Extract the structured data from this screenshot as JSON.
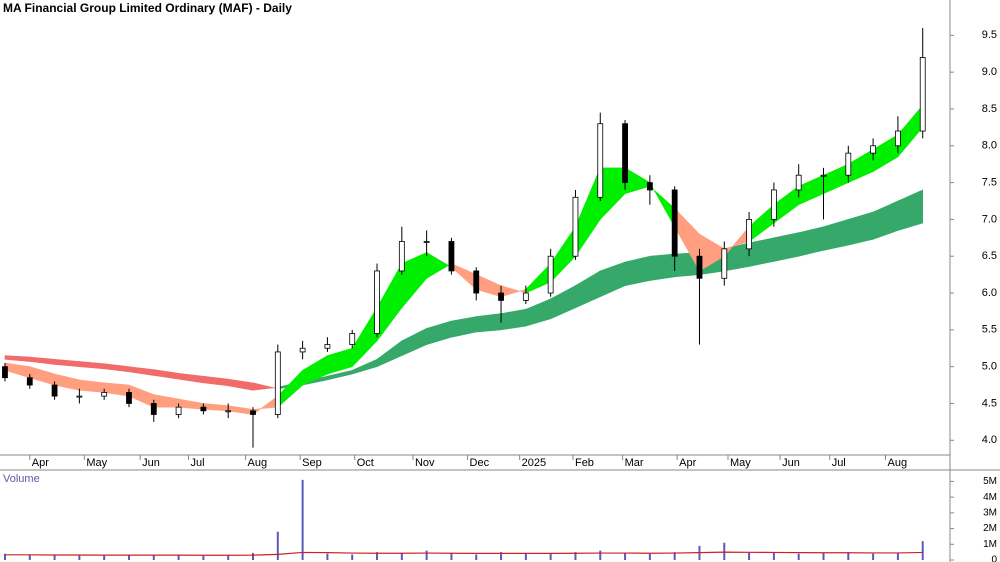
{
  "chart_data": [
    {
      "type": "candlestick",
      "title": "MA Financial Group Limited Ordinary (MAF) - Daily",
      "x": [
        0,
        2,
        4,
        6,
        8,
        10,
        12,
        14,
        16,
        18,
        20,
        22,
        24,
        26,
        28,
        30,
        32,
        34,
        36,
        38,
        40,
        42,
        44,
        46,
        48,
        50,
        52,
        54,
        56,
        58,
        60,
        62,
        64,
        66,
        68,
        70,
        72,
        74
      ],
      "open": [
        5.0,
        4.85,
        4.75,
        4.6,
        4.6,
        4.65,
        4.5,
        4.35,
        4.45,
        4.4,
        4.4,
        4.35,
        5.2,
        5.25,
        5.3,
        5.45,
        6.3,
        6.7,
        6.7,
        6.3,
        6.0,
        5.9,
        6.0,
        6.5,
        7.3,
        8.3,
        7.5,
        7.4,
        6.5,
        6.2,
        6.6,
        7.0,
        7.4,
        7.6,
        7.6,
        7.9,
        8.0,
        8.2
      ],
      "high": [
        5.05,
        4.9,
        4.8,
        4.7,
        4.7,
        4.7,
        4.55,
        4.5,
        4.5,
        4.5,
        4.45,
        5.3,
        5.35,
        5.4,
        5.5,
        6.4,
        6.9,
        6.85,
        6.75,
        6.35,
        6.1,
        6.1,
        6.6,
        7.4,
        8.45,
        8.35,
        7.6,
        7.45,
        6.6,
        6.7,
        7.1,
        7.5,
        7.75,
        7.7,
        8.0,
        8.1,
        8.4,
        9.6
      ],
      "low": [
        4.8,
        4.7,
        4.55,
        4.5,
        4.55,
        4.45,
        4.25,
        4.3,
        4.35,
        4.3,
        3.9,
        4.3,
        5.1,
        5.2,
        5.25,
        5.4,
        6.25,
        6.5,
        6.25,
        5.9,
        5.6,
        5.85,
        5.95,
        6.45,
        7.25,
        7.4,
        7.2,
        6.3,
        5.3,
        6.1,
        6.5,
        6.9,
        7.3,
        7.0,
        7.5,
        7.8,
        7.9,
        8.1
      ],
      "close": [
        4.85,
        4.75,
        4.6,
        4.6,
        4.65,
        4.5,
        4.35,
        4.45,
        4.4,
        4.4,
        4.35,
        5.2,
        5.25,
        5.3,
        5.45,
        6.3,
        6.7,
        6.7,
        6.3,
        6.0,
        5.9,
        6.0,
        6.5,
        7.3,
        8.3,
        7.5,
        7.4,
        6.5,
        6.2,
        6.6,
        7.0,
        7.4,
        7.6,
        7.6,
        7.9,
        8.0,
        8.2,
        9.2
      ],
      "up_color": "#ffffff",
      "down_color": "#000000",
      "bands": [
        {
          "fast": [
            5.1,
            5.07,
            5.03,
            5.0,
            4.97,
            4.93,
            4.88,
            4.83,
            4.78,
            4.74,
            4.68,
            4.72,
            4.8,
            4.87,
            4.95,
            5.1,
            5.35,
            5.52,
            5.62,
            5.68,
            5.72,
            5.78,
            5.92,
            6.1,
            6.3,
            6.42,
            6.5,
            6.53,
            6.55,
            6.6,
            6.68,
            6.75,
            6.82,
            6.9,
            7.0,
            7.1,
            7.25,
            7.4
          ],
          "slow": [
            5.15,
            5.13,
            5.1,
            5.07,
            5.04,
            5.0,
            4.96,
            4.91,
            4.87,
            4.83,
            4.78,
            4.7,
            4.75,
            4.82,
            4.9,
            5.0,
            5.15,
            5.3,
            5.4,
            5.47,
            5.5,
            5.55,
            5.65,
            5.8,
            5.95,
            6.1,
            6.17,
            6.22,
            6.25,
            6.3,
            6.36,
            6.43,
            6.5,
            6.58,
            6.65,
            6.73,
            6.85,
            6.95
          ],
          "up_color": "#35a86a",
          "down_color": "#f26b6b"
        },
        {
          "fast": [
            4.95,
            4.85,
            4.75,
            4.68,
            4.65,
            4.6,
            4.45,
            4.45,
            4.42,
            4.4,
            4.35,
            4.6,
            4.95,
            5.15,
            5.25,
            5.8,
            6.4,
            6.55,
            6.35,
            6.05,
            5.95,
            6.05,
            6.4,
            6.9,
            7.7,
            7.7,
            7.5,
            6.9,
            6.3,
            6.5,
            6.9,
            7.2,
            7.45,
            7.6,
            7.75,
            7.95,
            8.15,
            8.55
          ],
          "slow": [
            5.05,
            5.0,
            4.9,
            4.82,
            4.78,
            4.75,
            4.62,
            4.56,
            4.5,
            4.47,
            4.42,
            4.45,
            4.75,
            4.9,
            5.0,
            5.35,
            5.8,
            6.2,
            6.4,
            6.25,
            6.1,
            6.0,
            6.15,
            6.5,
            7.0,
            7.35,
            7.45,
            7.15,
            6.8,
            6.6,
            6.7,
            6.95,
            7.2,
            7.35,
            7.5,
            7.65,
            7.85,
            8.25
          ],
          "up_color": "#00ee00",
          "down_color": "#ff9f80"
        }
      ],
      "xlim": [
        -0.4,
        76.2
      ],
      "xticks": [
        {
          "value": 2,
          "label": "Apr"
        },
        {
          "value": 6.4,
          "label": "May"
        },
        {
          "value": 10.9,
          "label": "Jun"
        },
        {
          "value": 14.8,
          "label": "Jul"
        },
        {
          "value": 19.4,
          "label": "Aug"
        },
        {
          "value": 23.8,
          "label": "Sep"
        },
        {
          "value": 28.2,
          "label": "Oct"
        },
        {
          "value": 32.9,
          "label": "Nov"
        },
        {
          "value": 37.3,
          "label": "Dec"
        },
        {
          "value": 41.5,
          "label": "2025"
        },
        {
          "value": 45.8,
          "label": "Feb"
        },
        {
          "value": 49.8,
          "label": "Mar"
        },
        {
          "value": 54.2,
          "label": "Apr"
        },
        {
          "value": 58.3,
          "label": "May"
        },
        {
          "value": 62.5,
          "label": "Jun"
        },
        {
          "value": 66.5,
          "label": "Jul"
        },
        {
          "value": 71,
          "label": "Aug"
        }
      ],
      "ylim": [
        3.8,
        9.98
      ],
      "yticks": [
        {
          "value": 4,
          "label": "4.0"
        },
        4.5,
        {
          "value": 5,
          "label": "5.0"
        },
        5.5,
        {
          "value": 6,
          "label": "6.0"
        },
        6.5,
        {
          "value": 7,
          "label": "7.0"
        },
        7.5,
        {
          "value": 8,
          "label": "8.0"
        },
        8.5,
        {
          "value": 9,
          "label": "9.0"
        },
        9.5
      ]
    },
    {
      "type": "bar",
      "title": "Volume",
      "x": [
        0,
        2,
        4,
        6,
        8,
        10,
        12,
        14,
        16,
        18,
        20,
        22,
        24,
        26,
        28,
        30,
        32,
        34,
        36,
        38,
        40,
        42,
        44,
        46,
        48,
        50,
        52,
        54,
        56,
        58,
        60,
        62,
        64,
        66,
        68,
        70,
        72,
        74
      ],
      "values": [
        400000,
        350000,
        300000,
        300000,
        280000,
        300000,
        320000,
        300000,
        280000,
        300000,
        450000,
        1800000,
        5100000,
        400000,
        350000,
        500000,
        450000,
        600000,
        400000,
        350000,
        500000,
        450000,
        400000,
        500000,
        600000,
        450000,
        400000,
        500000,
        900000,
        1100000,
        500000,
        450000,
        400000,
        450000,
        500000,
        400000,
        450000,
        1200000
      ],
      "color": "#5a5ab8",
      "average": {
        "color": "#cc2222",
        "values": [
          330000,
          330000,
          320000,
          320000,
          310000,
          310000,
          310000,
          310000,
          300000,
          300000,
          310000,
          360000,
          480000,
          470000,
          440000,
          430000,
          430000,
          440000,
          430000,
          420000,
          420000,
          420000,
          420000,
          430000,
          440000,
          440000,
          430000,
          440000,
          470000,
          500000,
          490000,
          480000,
          470000,
          460000,
          460000,
          450000,
          450000,
          480000
        ]
      },
      "xlim": [
        -0.4,
        76.2
      ],
      "ylim": [
        0,
        5600000
      ],
      "yticks": [
        0,
        {
          "value": 1000000,
          "label": "1M"
        },
        {
          "value": 2000000,
          "label": "2M"
        },
        {
          "value": 3000000,
          "label": "3M"
        },
        {
          "value": 4000000,
          "label": "4M"
        },
        {
          "value": 5000000,
          "label": "5M"
        }
      ]
    }
  ]
}
